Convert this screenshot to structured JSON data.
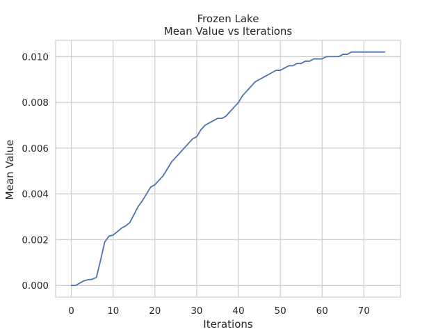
{
  "chart_data": {
    "type": "line",
    "title": "Frozen Lake",
    "subtitle": "Mean Value vs Iterations",
    "xlabel": "Iterations",
    "ylabel": "Mean Value",
    "xlim": [
      -3.75,
      78.75
    ],
    "ylim": [
      -0.00051,
      0.01071
    ],
    "xticks": [
      0,
      10,
      20,
      30,
      40,
      50,
      60,
      70
    ],
    "yticks": [
      0,
      0.002,
      0.004,
      0.006,
      0.008,
      0.01
    ],
    "xtick_labels": [
      "0",
      "10",
      "20",
      "30",
      "40",
      "50",
      "60",
      "70"
    ],
    "ytick_labels": [
      "0.000",
      "0.002",
      "0.004",
      "0.006",
      "0.008",
      "0.010"
    ],
    "grid": true,
    "line_color": "#4c72b0",
    "x": [
      0,
      1,
      2,
      3,
      4,
      5,
      6,
      7,
      8,
      9,
      10,
      11,
      12,
      13,
      14,
      15,
      16,
      17,
      18,
      19,
      20,
      21,
      22,
      23,
      24,
      25,
      26,
      27,
      28,
      29,
      30,
      31,
      32,
      33,
      34,
      35,
      36,
      37,
      38,
      39,
      40,
      41,
      42,
      43,
      44,
      45,
      46,
      47,
      48,
      49,
      50,
      51,
      52,
      53,
      54,
      55,
      56,
      57,
      58,
      59,
      60,
      61,
      62,
      63,
      64,
      65,
      66,
      67,
      68,
      69,
      70,
      71,
      72,
      73,
      74,
      75
    ],
    "y": [
      0.0,
      0.0,
      0.0001,
      0.0002,
      0.00025,
      0.00027,
      0.00035,
      0.0011,
      0.0019,
      0.00215,
      0.0022,
      0.00235,
      0.0025,
      0.0026,
      0.00275,
      0.0031,
      0.00345,
      0.0037,
      0.004,
      0.0043,
      0.0044,
      0.0046,
      0.0048,
      0.0051,
      0.0054,
      0.0056,
      0.0058,
      0.006,
      0.0062,
      0.0064,
      0.0065,
      0.0068,
      0.007,
      0.0071,
      0.0072,
      0.0073,
      0.0073,
      0.0074,
      0.0076,
      0.0078,
      0.008,
      0.0083,
      0.0085,
      0.0087,
      0.0089,
      0.009,
      0.0091,
      0.0092,
      0.0093,
      0.0094,
      0.0094,
      0.0095,
      0.0096,
      0.0096,
      0.0097,
      0.0097,
      0.0098,
      0.0098,
      0.0099,
      0.0099,
      0.0099,
      0.01,
      0.01,
      0.01,
      0.01,
      0.0101,
      0.0101,
      0.0102,
      0.0102,
      0.0102,
      0.0102,
      0.0102,
      0.0102,
      0.0102,
      0.0102,
      0.0102
    ]
  }
}
